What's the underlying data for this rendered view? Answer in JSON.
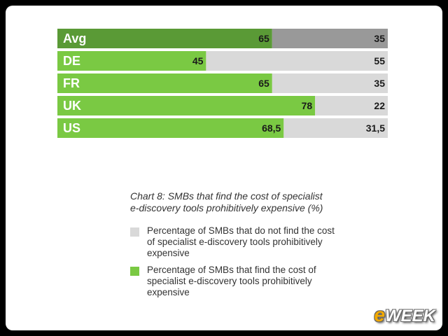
{
  "chart_data": {
    "type": "bar",
    "orientation": "horizontal",
    "stacked": true,
    "categories": [
      "Avg",
      "DE",
      "FR",
      "UK",
      "US"
    ],
    "series": [
      {
        "name": "Percentage of SMBs that find the cost of specialist e-discovery tools prohibitively expensive",
        "values": [
          65,
          45,
          65,
          78,
          68.5
        ],
        "labels": [
          "65",
          "45",
          "65",
          "78",
          "68,5"
        ]
      },
      {
        "name": "Percentage of SMBs that do not find the cost of specialist e-discovery tools prohibitively expensive",
        "values": [
          35,
          55,
          35,
          22,
          31.5
        ],
        "labels": [
          "35",
          "55",
          "35",
          "22",
          "31,5"
        ]
      }
    ],
    "xlim": [
      0,
      100
    ],
    "title": "Chart 8: SMBs that find the cost of specialist e-discovery tools prohibitively expensive (%)",
    "colors": {
      "find": "#7ac943",
      "not_find": "#d9d9d9",
      "avg_find": "#5a9a36",
      "avg_not_find": "#999999"
    },
    "grid": false
  },
  "caption": {
    "line1": "Chart 8: SMBs that find the cost of specialist",
    "line2": "e-discovery tools prohibitively expensive (%)"
  },
  "legend": [
    {
      "label": "Percentage of SMBs that do not find the cost of specialist e-discovery tools prohibitively expensive",
      "color": "#d9d9d9"
    },
    {
      "label": "Percentage of SMBs that find the cost of specialist e-discovery tools prohibitively expensive",
      "color": "#7ac943"
    }
  ],
  "watermark": {
    "e": "e",
    "rest": "WEEK"
  }
}
